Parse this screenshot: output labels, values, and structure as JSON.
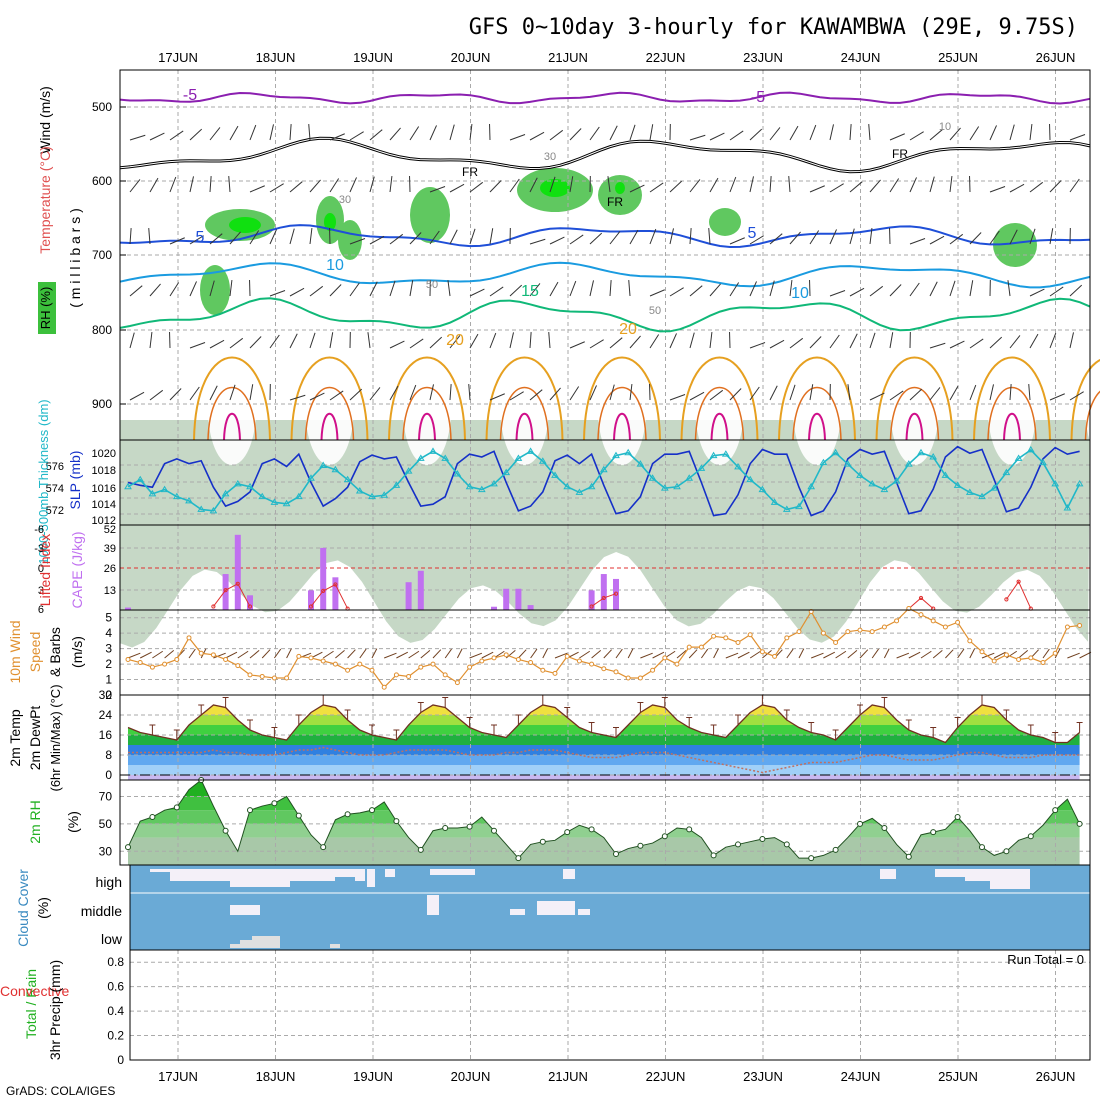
{
  "title": "GFS 0~10day 3-hourly for KAWAMBWA (29E, 9.75S)",
  "credit": "GrADS: COLA/IGES",
  "dates": [
    "17JUN",
    "18JUN",
    "19JUN",
    "20JUN",
    "21JUN",
    "22JUN",
    "23JUN",
    "24JUN",
    "25JUN",
    "26JUN"
  ],
  "run_total": "Run Total = 0",
  "colors": {
    "purple": "#8b1fb0",
    "black": "#000000",
    "blue5": "#1f4fd8",
    "blue10": "#1a9be0",
    "green15": "#10b878",
    "orange20": "#e6a020",
    "magenta": "#d0108a",
    "cyan": "#20b8c8",
    "navy": "#1530c8",
    "cape": "#c070f0",
    "li": "#e03030",
    "windspd": "#e09030",
    "cloud": "#6aaad6"
  },
  "panels": {
    "upper": {
      "ylabels": [
        "Wind (m/s)",
        "Temperature (°C)",
        "RH (%)",
        "( m i l l i b a r s )"
      ],
      "y_ticks": [
        "500",
        "600",
        "700",
        "800",
        "900"
      ],
      "contour_labels": [
        "-5",
        "-5",
        "FR",
        "FR",
        "FR",
        "5",
        "5",
        "10",
        "10",
        "15",
        "20",
        "20",
        "30",
        "30",
        "10",
        "50",
        "50"
      ]
    },
    "slp": {
      "ylabel_left": "1000-500mb Thickness (dm)",
      "ylabel_right": "SLP (mb)",
      "left_ticks": [
        "576",
        "574",
        "572"
      ],
      "right_ticks": [
        "1020",
        "1018",
        "1016",
        "1014",
        "1012"
      ]
    },
    "cape": {
      "ylabel_left": "Lifted Index",
      "ylabel_right": "CAPE (J/kg)",
      "left_ticks": [
        "-6",
        "-3",
        "0",
        "3",
        "6"
      ],
      "right_ticks": [
        "52",
        "39",
        "26",
        "13"
      ]
    },
    "wind10": {
      "ylabel": [
        "10m Wind",
        "Speed",
        "& Barbs",
        "(m/s)"
      ],
      "y_ticks": [
        "5",
        "4",
        "3",
        "2",
        "1",
        "0"
      ]
    },
    "temp": {
      "ylabel": [
        "2m Temp",
        "2m DewPt",
        "(6hr Min/Max) (°C)"
      ],
      "y_ticks": [
        "32",
        "24",
        "16",
        "8",
        "0"
      ]
    },
    "rh": {
      "ylabel": [
        "2m RH",
        "(%)"
      ],
      "y_ticks": [
        "70",
        "50",
        "30"
      ]
    },
    "cloud": {
      "ylabel": [
        "Cloud Cover",
        "(%)"
      ],
      "levels": [
        "high",
        "middle",
        "low"
      ]
    },
    "precip": {
      "ylabel": [
        "Total / Rain",
        "Convective",
        "3hr Precip (mm)"
      ],
      "y_ticks": [
        "0.8",
        "0.6",
        "0.4",
        "0.2",
        "0"
      ]
    }
  },
  "chart_data": [
    {
      "type": "line",
      "title": "SLP & 1000-500mb Thickness",
      "x": [
        "16JUN12",
        "16JUN15",
        "16JUN18",
        "16JUN21",
        "17JUN00",
        "17JUN03",
        "17JUN06",
        "17JUN09",
        "17JUN12",
        "17JUN15",
        "17JUN18",
        "17JUN21",
        "18JUN00",
        "18JUN03",
        "18JUN06",
        "18JUN09",
        "18JUN12",
        "18JUN15",
        "18JUN18",
        "18JUN21",
        "19JUN00",
        "19JUN03",
        "19JUN06",
        "19JUN09",
        "19JUN12",
        "19JUN15",
        "19JUN18",
        "19JUN21",
        "20JUN00",
        "20JUN03",
        "20JUN06",
        "20JUN09",
        "20JUN12",
        "20JUN15",
        "20JUN18",
        "20JUN21",
        "21JUN00",
        "21JUN03",
        "21JUN06",
        "21JUN09",
        "21JUN12",
        "21JUN15",
        "21JUN18",
        "21JUN21",
        "22JUN00",
        "22JUN03",
        "22JUN06",
        "22JUN09",
        "22JUN12",
        "22JUN15",
        "22JUN18",
        "22JUN21",
        "23JUN00",
        "23JUN03",
        "23JUN06",
        "23JUN09",
        "23JUN12",
        "23JUN15",
        "23JUN18",
        "23JUN21",
        "24JUN00",
        "24JUN03",
        "24JUN06",
        "24JUN09",
        "24JUN12",
        "24JUN15",
        "24JUN18",
        "24JUN21",
        "25JUN00",
        "25JUN03",
        "25JUN06",
        "25JUN09",
        "25JUN12",
        "25JUN15",
        "25JUN18",
        "25JUN21",
        "26JUN00",
        "26JUN03",
        "26JUN06"
      ],
      "series": [
        {
          "name": "SLP (mb)",
          "color": "#1530c8",
          "values": [
            1016.5,
            1016.2,
            1016.0,
            1018.5,
            1019.0,
            1018.5,
            1018.8,
            1016.0,
            1014.0,
            1014.5,
            1015.5,
            1018.5,
            1019.0,
            1018.2,
            1019.5,
            1016.5,
            1014.0,
            1014.8,
            1016.0,
            1018.7,
            1019.4,
            1019.0,
            1019.2,
            1016.5,
            1014.0,
            1014.2,
            1015.0,
            1018.5,
            1019.5,
            1019.2,
            1019.8,
            1016.5,
            1013.5,
            1014.0,
            1015.5,
            1018.8,
            1019.4,
            1018.5,
            1019.5,
            1016.2,
            1013.2,
            1013.5,
            1015.0,
            1018.5,
            1019.5,
            1019.5,
            1019.8,
            1016.5,
            1013.0,
            1013.2,
            1015.2,
            1018.5,
            1020.0,
            1019.5,
            1019.5,
            1016.0,
            1013.0,
            1013.5,
            1015.5,
            1019.0,
            1020.0,
            1019.5,
            1019.8,
            1016.5,
            1013.2,
            1013.5,
            1015.8,
            1019.2,
            1020.3,
            1019.6,
            1020.0,
            1016.8,
            1013.4,
            1013.8,
            1016.0,
            1019.0,
            1020.2,
            1019.5,
            1019.8
          ]
        },
        {
          "name": "1000-500mb Thickness (dm)",
          "color": "#20b8c8",
          "values": [
            574.0,
            574.5,
            573.5,
            573.8,
            573.3,
            573.0,
            572.4,
            572.3,
            573.5,
            574.2,
            574.0,
            573.3,
            572.9,
            572.8,
            573.3,
            574.6,
            575.5,
            575.2,
            574.5,
            573.7,
            573.3,
            573.4,
            574.1,
            575.1,
            576.0,
            576.5,
            576.0,
            574.9,
            574.0,
            573.8,
            574.2,
            575.0,
            576.0,
            576.5,
            575.8,
            574.8,
            574.0,
            573.6,
            574.0,
            575.2,
            576.2,
            576.4,
            575.6,
            574.6,
            573.9,
            574.0,
            574.6,
            575.3,
            576.2,
            576.3,
            575.4,
            574.5,
            573.8,
            572.9,
            572.4,
            572.6,
            574.0,
            575.7,
            576.4,
            575.6,
            574.8,
            574.2,
            573.8,
            574.4,
            575.6,
            576.4,
            576.1,
            574.8,
            574.1,
            573.6,
            573.3,
            573.9,
            575.0,
            576.0,
            576.6,
            575.7,
            574.2,
            572.5,
            574.2
          ]
        }
      ],
      "ylabel": "SLP (mb)",
      "ylim": [
        1012,
        1021
      ]
    },
    {
      "type": "bar",
      "title": "CAPE",
      "categories": [
        "16JUN12",
        "17JUN09",
        "17JUN12",
        "17JUN15",
        "17JUN18",
        "18JUN09",
        "18JUN12",
        "18JUN15",
        "19JUN09",
        "19JUN12",
        "20JUN06",
        "20JUN09",
        "20JUN12",
        "20JUN15",
        "21JUN06",
        "21JUN09",
        "21JUN12"
      ],
      "values": [
        1.5,
        0.5,
        22,
        46,
        9,
        12,
        38,
        20,
        17,
        24,
        2,
        13,
        13,
        3,
        12,
        22,
        19
      ],
      "ylabel": "CAPE (J/kg)",
      "ylim": [
        0,
        52
      ]
    },
    {
      "type": "line",
      "title": "Lifted Index",
      "x": [
        "17JUN09",
        "17JUN12",
        "17JUN15",
        "17JUN18",
        "18JUN09",
        "18JUN12",
        "18JUN15",
        "18JUN18",
        "21JUN06",
        "21JUN09",
        "21JUN12",
        "24JUN12",
        "24JUN15",
        "24JUN18",
        "25JUN12",
        "25JUN15",
        "25JUN18"
      ],
      "series": [
        {
          "name": "Lifted Index",
          "color": "#e03030",
          "values": [
            5.5,
            3.2,
            2.3,
            5.5,
            5.5,
            3.3,
            2.4,
            5.8,
            5.5,
            4.3,
            3.7,
            5.8,
            4.3,
            5.8,
            4.5,
            2.0,
            5.8
          ]
        }
      ],
      "ylabel": "Lifted Index",
      "ylim": [
        6,
        -6
      ]
    },
    {
      "type": "line",
      "title": "10m Wind Speed",
      "x_count": 79,
      "series": [
        {
          "name": "10m Wind Speed",
          "color": "#e09030",
          "values": [
            2.3,
            2.1,
            1.8,
            2.0,
            2.3,
            3.7,
            2.7,
            2.6,
            2.3,
            1.9,
            1.3,
            1.2,
            1.1,
            1.1,
            2.5,
            2.4,
            2.2,
            2.0,
            1.6,
            2.0,
            1.6,
            0.5,
            1.3,
            1.2,
            1.8,
            2.0,
            1.3,
            0.8,
            1.8,
            2.2,
            2.4,
            2.6,
            2.3,
            2.1,
            1.6,
            1.4,
            2.5,
            2.2,
            2.0,
            1.7,
            1.5,
            1.1,
            1.1,
            1.6,
            2.4,
            2.0,
            3.1,
            3.1,
            3.8,
            3.7,
            3.4,
            3.9,
            2.8,
            2.5,
            3.7,
            4.1,
            5.4,
            4.0,
            3.4,
            4.1,
            4.2,
            4.1,
            4.4,
            4.8,
            5.6,
            5.2,
            4.8,
            4.4,
            4.7,
            3.5,
            2.8,
            2.2,
            2.6,
            2.3,
            2.4,
            2.1,
            2.7,
            4.4,
            4.5
          ]
        }
      ],
      "ylabel": "m/s",
      "ylim": [
        0,
        5.5
      ]
    },
    {
      "type": "area",
      "title": "2m Temp",
      "x_count": 79,
      "series": [
        {
          "name": "2m Temp",
          "values": [
            19,
            17,
            16,
            15,
            14,
            20,
            24,
            28,
            27,
            22,
            18,
            16,
            15,
            14,
            20,
            25,
            28,
            27,
            22,
            18,
            16,
            15,
            14,
            20,
            25,
            28,
            27,
            23,
            19,
            17,
            16,
            15,
            20,
            25,
            28,
            27,
            23,
            19,
            17,
            16,
            15,
            20,
            25,
            28,
            27,
            22,
            19,
            17,
            16,
            15,
            20,
            25,
            28,
            27,
            22,
            19,
            17,
            16,
            14,
            19,
            24,
            28,
            27,
            22,
            18,
            16,
            15,
            13,
            19,
            24,
            28,
            27,
            22,
            18,
            16,
            15,
            13,
            13,
            17
          ]
        },
        {
          "name": "2m DewPt",
          "values": [
            9,
            9,
            9,
            9,
            9,
            9,
            9,
            10,
            9,
            9,
            8,
            8,
            8,
            9,
            10,
            10,
            11,
            10,
            9,
            8,
            8,
            8,
            9,
            10,
            10,
            10,
            10,
            9,
            8,
            8,
            8,
            9,
            9,
            10,
            10,
            10,
            9,
            8,
            7,
            7,
            7,
            8,
            9,
            9,
            9,
            8,
            7,
            6,
            5,
            4,
            3,
            2,
            1,
            2,
            3,
            4,
            5,
            5,
            5,
            6,
            7,
            8,
            8,
            7,
            6,
            6,
            6,
            7,
            8,
            9,
            9,
            8,
            7,
            7,
            7,
            8,
            8,
            8,
            8
          ]
        }
      ],
      "ylabel": "°C",
      "ylim": [
        0,
        32
      ]
    },
    {
      "type": "area",
      "title": "2m RH",
      "x_count": 79,
      "series": [
        {
          "name": "2m RH",
          "values": [
            33,
            52,
            55,
            60,
            62,
            75,
            82,
            63,
            45,
            30,
            60,
            63,
            65,
            70,
            56,
            42,
            33,
            53,
            57,
            58,
            60,
            66,
            52,
            40,
            31,
            45,
            47,
            47,
            48,
            55,
            45,
            35,
            25,
            35,
            37,
            38,
            44,
            49,
            46,
            40,
            28,
            32,
            34,
            36,
            41,
            47,
            46,
            40,
            27,
            33,
            35,
            37,
            39,
            40,
            35,
            25,
            25,
            27,
            31,
            40,
            50,
            54,
            47,
            35,
            26,
            42,
            44,
            46,
            55,
            45,
            33,
            27,
            30,
            38,
            41,
            49,
            60,
            68,
            50
          ]
        }
      ],
      "ylabel": "%",
      "ylim": [
        20,
        80
      ]
    },
    {
      "type": "bar",
      "title": "3hr Precip",
      "categories": [],
      "values": [],
      "ylabel": "3hr Precip (mm)",
      "ylim": [
        0,
        0.9
      ]
    }
  ]
}
